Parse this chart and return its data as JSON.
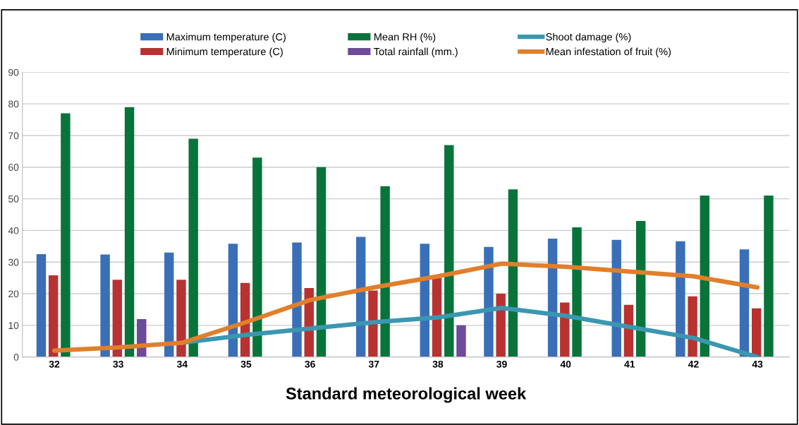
{
  "chart_data": {
    "type": "bar",
    "xlabel": "Standard meteorological week",
    "categories": [
      "32",
      "33",
      "34",
      "35",
      "36",
      "37",
      "38",
      "39",
      "40",
      "41",
      "42",
      "43"
    ],
    "series": [
      {
        "name": "Maximum temperature (C)",
        "color": "#3a6fb8",
        "values": [
          32.5,
          32.4,
          33,
          35.8,
          36.2,
          38,
          35.8,
          34.8,
          37.4,
          37,
          36.6,
          34
        ]
      },
      {
        "name": "Minimum temperature (C)",
        "color": "#b83232",
        "values": [
          25.8,
          24.4,
          24.4,
          23.4,
          21.8,
          21,
          25,
          20,
          17.2,
          16.5,
          19.2,
          15.4
        ]
      },
      {
        "name": "Mean RH (%)",
        "color": "#08743a",
        "values": [
          77,
          79,
          69,
          63,
          60,
          54,
          67,
          53,
          41,
          43,
          51,
          51
        ]
      },
      {
        "name": "Total rainfall (mm.)",
        "color": "#6d4a9a",
        "values": [
          0,
          12,
          0,
          0,
          0,
          0,
          10,
          0,
          0,
          0,
          0,
          0
        ]
      },
      {
        "name": "Shoot damage (%)",
        "type": "line",
        "color": "#3b97b0",
        "values": [
          null,
          null,
          4.5,
          7,
          9,
          11,
          12.5,
          15.5,
          13,
          9.5,
          6,
          0
        ]
      },
      {
        "name": "Mean infestation of fruit (%)",
        "type": "line",
        "color": "#e07f2c",
        "values": [
          2,
          3,
          4.5,
          11,
          18,
          22,
          25.5,
          29.5,
          28.5,
          27,
          25.5,
          22
        ]
      }
    ],
    "ylim": [
      0,
      90
    ],
    "yticks": [
      0,
      10,
      20,
      30,
      40,
      50,
      60,
      70,
      80,
      90
    ],
    "grid": "y",
    "legend": "top"
  }
}
